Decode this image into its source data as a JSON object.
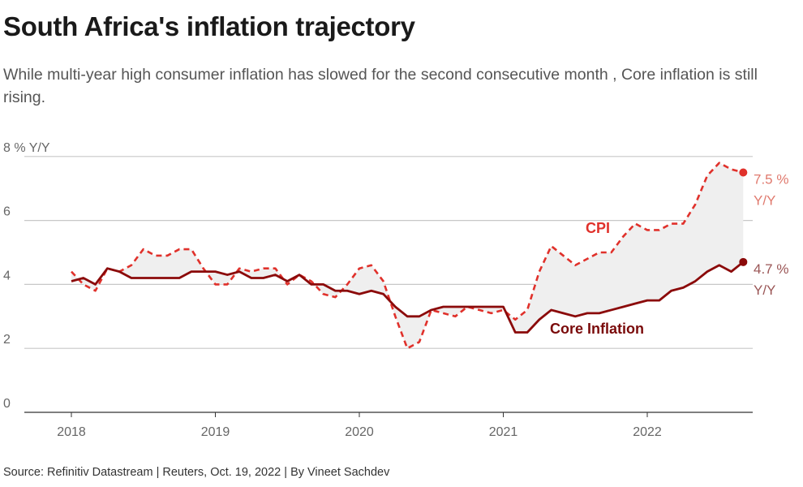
{
  "chart_data": {
    "type": "line",
    "title": "South Africa's inflation trajectory",
    "subtitle": "While multi-year high consumer inflation has slowed for the second consecutive month , Core inflation is still rising.",
    "ylabel": "8 % Y/Y",
    "ylim": [
      0,
      8
    ],
    "yticks": [
      "0",
      "2",
      "4",
      "6",
      "8 % Y/Y"
    ],
    "xticks": [
      "2018",
      "2019",
      "2020",
      "2021",
      "2022"
    ],
    "x_start": "2018-01",
    "x_end": "2022-09",
    "grid": true,
    "series": [
      {
        "name": "CPI",
        "style": "dashed",
        "color": "#e0312b",
        "end_label": "7.5 %",
        "end_unit": "Y/Y",
        "values": [
          4.4,
          4.0,
          3.8,
          4.5,
          4.4,
          4.6,
          5.1,
          4.9,
          4.9,
          5.1,
          5.1,
          4.5,
          4.0,
          4.0,
          4.5,
          4.4,
          4.5,
          4.5,
          4.0,
          4.3,
          4.1,
          3.7,
          3.6,
          4.0,
          4.5,
          4.6,
          4.1,
          3.0,
          2.0,
          2.2,
          3.2,
          3.1,
          3.0,
          3.3,
          3.2,
          3.1,
          3.2,
          2.9,
          3.2,
          4.4,
          5.2,
          4.9,
          4.6,
          4.8,
          5.0,
          5.0,
          5.5,
          5.9,
          5.7,
          5.7,
          5.9,
          5.9,
          6.5,
          7.4,
          7.8,
          7.6,
          7.5
        ]
      },
      {
        "name": "Core Inflation",
        "style": "solid",
        "color": "#8b0a0a",
        "end_label": "4.7 %",
        "end_unit": "Y/Y",
        "values": [
          4.1,
          4.2,
          4.0,
          4.5,
          4.4,
          4.2,
          4.2,
          4.2,
          4.2,
          4.2,
          4.4,
          4.4,
          4.4,
          4.3,
          4.4,
          4.2,
          4.2,
          4.3,
          4.1,
          4.3,
          4.0,
          4.0,
          3.8,
          3.8,
          3.7,
          3.8,
          3.7,
          3.3,
          3.0,
          3.0,
          3.2,
          3.3,
          3.3,
          3.3,
          3.3,
          3.3,
          3.3,
          2.5,
          2.5,
          2.9,
          3.2,
          3.1,
          3.0,
          3.1,
          3.1,
          3.2,
          3.3,
          3.4,
          3.5,
          3.5,
          3.8,
          3.9,
          4.1,
          4.4,
          4.6,
          4.4,
          4.7
        ]
      }
    ]
  },
  "source": "Source: Refinitiv Datastream | Reuters, Oct. 19, 2022 | By Vineet Sachdev"
}
